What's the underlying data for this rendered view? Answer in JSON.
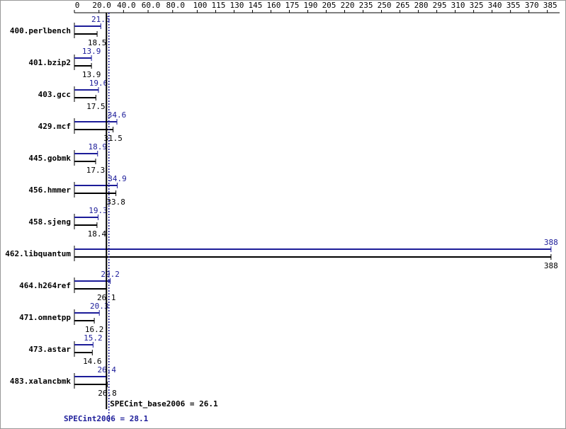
{
  "chart_data": {
    "type": "bar",
    "categories": [
      "400.perlbench",
      "401.bzip2",
      "403.gcc",
      "429.mcf",
      "445.gobmk",
      "456.hmmer",
      "458.sjeng",
      "462.libquantum",
      "464.h264ref",
      "471.omnetpp",
      "473.astar",
      "483.xalancbmk"
    ],
    "series": [
      {
        "name": "SPECint2006",
        "color": "#1c1c99",
        "values": [
          21.5,
          13.9,
          19.6,
          34.6,
          18.9,
          34.9,
          19.3,
          388,
          29.2,
          20.3,
          15.2,
          26.4
        ]
      },
      {
        "name": "SPECint_base2006",
        "color": "#000000",
        "values": [
          18.5,
          13.9,
          17.5,
          31.5,
          17.3,
          33.8,
          18.4,
          388,
          26.1,
          16.2,
          14.6,
          26.8
        ]
      }
    ],
    "summary": [
      {
        "value": 28.1,
        "label": "SPECint2006 = 28.1",
        "color": "#1c1c99"
      },
      {
        "value": 26.1,
        "label": "SPECint_base2006 = 26.1",
        "color": "#000000"
      }
    ],
    "xlim": [
      0,
      395
    ],
    "xticks": [
      0,
      {
        "value": 20,
        "label": "20.0"
      },
      {
        "value": 40,
        "label": "40.0"
      },
      {
        "value": 60,
        "label": "60.0"
      },
      {
        "value": 80,
        "label": "80.0"
      },
      100,
      115,
      130,
      145,
      160,
      175,
      190,
      205,
      220,
      235,
      250,
      265,
      280,
      295,
      310,
      325,
      340,
      355,
      370,
      385
    ]
  }
}
